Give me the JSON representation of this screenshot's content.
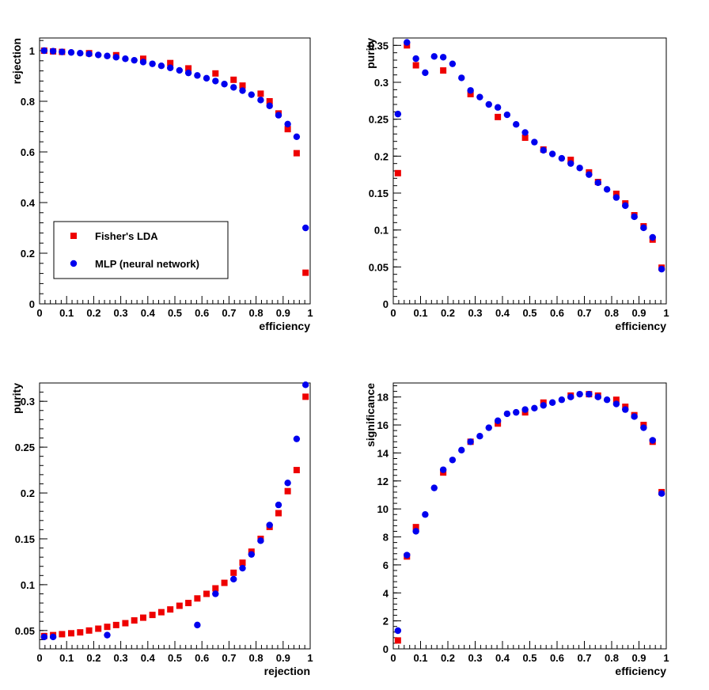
{
  "chart_data": [
    {
      "type": "scatter",
      "xlabel": "efficiency",
      "ylabel": "rejection",
      "xlim": [
        0,
        1
      ],
      "ylim": [
        0,
        1.05
      ],
      "xticks": [
        "0",
        "0.1",
        "0.2",
        "0.3",
        "0.4",
        "0.5",
        "0.6",
        "0.7",
        "0.8",
        "0.9",
        "1"
      ],
      "xtick_values": [
        0,
        0.1,
        0.2,
        0.3,
        0.4,
        0.5,
        0.6,
        0.7,
        0.8,
        0.9,
        1
      ],
      "yticks": [
        "0",
        "0.2",
        "0.4",
        "0.6",
        "0.8",
        "1"
      ],
      "ytick_values": [
        0,
        0.2,
        0.4,
        0.6,
        0.8,
        1
      ],
      "legend": {
        "position": "lower-left"
      },
      "series": [
        {
          "name": "Fisher's LDA",
          "color": "#ee0000",
          "marker": "square",
          "points": [
            [
              0.017,
              1.0
            ],
            [
              0.05,
              0.997
            ],
            [
              0.083,
              0.995
            ],
            [
              0.183,
              0.99
            ],
            [
              0.283,
              0.982
            ],
            [
              0.383,
              0.968
            ],
            [
              0.483,
              0.951
            ],
            [
              0.55,
              0.93
            ],
            [
              0.65,
              0.91
            ],
            [
              0.717,
              0.885
            ],
            [
              0.75,
              0.862
            ],
            [
              0.817,
              0.83
            ],
            [
              0.85,
              0.8
            ],
            [
              0.883,
              0.752
            ],
            [
              0.917,
              0.69
            ],
            [
              0.95,
              0.595
            ],
            [
              0.983,
              0.123
            ]
          ]
        },
        {
          "name": "MLP (neural network)",
          "color": "#0000ee",
          "marker": "circle",
          "points": [
            [
              0.017,
              1.0
            ],
            [
              0.05,
              0.998
            ],
            [
              0.083,
              0.995
            ],
            [
              0.117,
              0.993
            ],
            [
              0.15,
              0.99
            ],
            [
              0.183,
              0.987
            ],
            [
              0.217,
              0.983
            ],
            [
              0.25,
              0.979
            ],
            [
              0.283,
              0.974
            ],
            [
              0.317,
              0.968
            ],
            [
              0.35,
              0.962
            ],
            [
              0.383,
              0.955
            ],
            [
              0.417,
              0.948
            ],
            [
              0.45,
              0.94
            ],
            [
              0.483,
              0.932
            ],
            [
              0.517,
              0.922
            ],
            [
              0.55,
              0.912
            ],
            [
              0.583,
              0.902
            ],
            [
              0.617,
              0.891
            ],
            [
              0.65,
              0.88
            ],
            [
              0.683,
              0.868
            ],
            [
              0.717,
              0.855
            ],
            [
              0.75,
              0.842
            ],
            [
              0.783,
              0.826
            ],
            [
              0.817,
              0.805
            ],
            [
              0.85,
              0.782
            ],
            [
              0.883,
              0.745
            ],
            [
              0.917,
              0.71
            ],
            [
              0.95,
              0.66
            ],
            [
              0.983,
              0.3
            ]
          ]
        }
      ]
    },
    {
      "type": "scatter",
      "xlabel": "efficiency",
      "ylabel": "purity",
      "xlim": [
        0,
        1
      ],
      "ylim": [
        0,
        0.36
      ],
      "xticks": [
        "0",
        "0.1",
        "0.2",
        "0.3",
        "0.4",
        "0.5",
        "0.6",
        "0.7",
        "0.8",
        "0.9",
        "1"
      ],
      "xtick_values": [
        0,
        0.1,
        0.2,
        0.3,
        0.4,
        0.5,
        0.6,
        0.7,
        0.8,
        0.9,
        1
      ],
      "yticks": [
        "0",
        "0.05",
        "0.1",
        "0.15",
        "0.2",
        "0.25",
        "0.3",
        "0.35"
      ],
      "ytick_values": [
        0,
        0.05,
        0.1,
        0.15,
        0.2,
        0.25,
        0.3,
        0.35
      ],
      "series": [
        {
          "name": "Fisher's LDA",
          "color": "#ee0000",
          "marker": "square",
          "points": [
            [
              0.017,
              0.177
            ],
            [
              0.05,
              0.35
            ],
            [
              0.083,
              0.323
            ],
            [
              0.183,
              0.316
            ],
            [
              0.283,
              0.284
            ],
            [
              0.383,
              0.253
            ],
            [
              0.483,
              0.225
            ],
            [
              0.55,
              0.209
            ],
            [
              0.65,
              0.195
            ],
            [
              0.717,
              0.178
            ],
            [
              0.75,
              0.165
            ],
            [
              0.817,
              0.149
            ],
            [
              0.85,
              0.136
            ],
            [
              0.883,
              0.12
            ],
            [
              0.917,
              0.105
            ],
            [
              0.95,
              0.087
            ],
            [
              0.983,
              0.049
            ]
          ]
        },
        {
          "name": "MLP (neural network)",
          "color": "#0000ee",
          "marker": "circle",
          "points": [
            [
              0.017,
              0.257
            ],
            [
              0.05,
              0.354
            ],
            [
              0.083,
              0.332
            ],
            [
              0.117,
              0.313
            ],
            [
              0.15,
              0.335
            ],
            [
              0.183,
              0.334
            ],
            [
              0.217,
              0.325
            ],
            [
              0.25,
              0.306
            ],
            [
              0.283,
              0.289
            ],
            [
              0.317,
              0.28
            ],
            [
              0.35,
              0.27
            ],
            [
              0.383,
              0.266
            ],
            [
              0.417,
              0.256
            ],
            [
              0.45,
              0.243
            ],
            [
              0.483,
              0.232
            ],
            [
              0.517,
              0.219
            ],
            [
              0.55,
              0.208
            ],
            [
              0.583,
              0.203
            ],
            [
              0.617,
              0.197
            ],
            [
              0.65,
              0.19
            ],
            [
              0.683,
              0.184
            ],
            [
              0.717,
              0.175
            ],
            [
              0.75,
              0.164
            ],
            [
              0.783,
              0.155
            ],
            [
              0.817,
              0.144
            ],
            [
              0.85,
              0.133
            ],
            [
              0.883,
              0.118
            ],
            [
              0.917,
              0.103
            ],
            [
              0.95,
              0.09
            ],
            [
              0.983,
              0.047
            ]
          ]
        }
      ]
    },
    {
      "type": "scatter",
      "xlabel": "rejection",
      "ylabel": "purity",
      "xlim": [
        0,
        1
      ],
      "ylim": [
        0.03,
        0.32
      ],
      "xticks": [
        "0",
        "0.1",
        "0.2",
        "0.3",
        "0.4",
        "0.5",
        "0.6",
        "0.7",
        "0.8",
        "0.9",
        "1"
      ],
      "xtick_values": [
        0,
        0.1,
        0.2,
        0.3,
        0.4,
        0.5,
        0.6,
        0.7,
        0.8,
        0.9,
        1
      ],
      "yticks": [
        "0.05",
        "0.1",
        "0.15",
        "0.2",
        "0.25",
        "0.3"
      ],
      "ytick_values": [
        0.05,
        0.1,
        0.15,
        0.2,
        0.25,
        0.3
      ],
      "series": [
        {
          "name": "Fisher's LDA",
          "color": "#ee0000",
          "marker": "square",
          "points": [
            [
              0.017,
              0.044
            ],
            [
              0.05,
              0.045
            ],
            [
              0.083,
              0.046
            ],
            [
              0.117,
              0.047
            ],
            [
              0.15,
              0.048
            ],
            [
              0.183,
              0.05
            ],
            [
              0.217,
              0.052
            ],
            [
              0.25,
              0.054
            ],
            [
              0.283,
              0.056
            ],
            [
              0.317,
              0.058
            ],
            [
              0.35,
              0.061
            ],
            [
              0.383,
              0.064
            ],
            [
              0.417,
              0.067
            ],
            [
              0.45,
              0.07
            ],
            [
              0.483,
              0.073
            ],
            [
              0.517,
              0.077
            ],
            [
              0.55,
              0.08
            ],
            [
              0.583,
              0.085
            ],
            [
              0.617,
              0.09
            ],
            [
              0.65,
              0.096
            ],
            [
              0.683,
              0.102
            ],
            [
              0.717,
              0.113
            ],
            [
              0.75,
              0.124
            ],
            [
              0.783,
              0.136
            ],
            [
              0.817,
              0.15
            ],
            [
              0.85,
              0.163
            ],
            [
              0.883,
              0.178
            ],
            [
              0.917,
              0.202
            ],
            [
              0.95,
              0.225
            ],
            [
              0.983,
              0.305
            ]
          ]
        },
        {
          "name": "MLP (neural network)",
          "color": "#0000ee",
          "marker": "circle",
          "points": [
            [
              0.017,
              0.043
            ],
            [
              0.05,
              0.043
            ],
            [
              0.25,
              0.045
            ],
            [
              0.583,
              0.056
            ],
            [
              0.65,
              0.09
            ],
            [
              0.717,
              0.106
            ],
            [
              0.75,
              0.118
            ],
            [
              0.783,
              0.133
            ],
            [
              0.817,
              0.148
            ],
            [
              0.85,
              0.165
            ],
            [
              0.883,
              0.187
            ],
            [
              0.917,
              0.211
            ],
            [
              0.95,
              0.259
            ],
            [
              0.983,
              0.318
            ]
          ]
        }
      ]
    },
    {
      "type": "scatter",
      "xlabel": "efficiency",
      "ylabel": "significance",
      "xlim": [
        0,
        1
      ],
      "ylim": [
        0,
        19
      ],
      "xticks": [
        "0",
        "0.1",
        "0.2",
        "0.3",
        "0.4",
        "0.5",
        "0.6",
        "0.7",
        "0.8",
        "0.9",
        "1"
      ],
      "xtick_values": [
        0,
        0.1,
        0.2,
        0.3,
        0.4,
        0.5,
        0.6,
        0.7,
        0.8,
        0.9,
        1
      ],
      "yticks": [
        "0",
        "2",
        "4",
        "6",
        "8",
        "10",
        "12",
        "14",
        "16",
        "18"
      ],
      "ytick_values": [
        0,
        2,
        4,
        6,
        8,
        10,
        12,
        14,
        16,
        18
      ],
      "series": [
        {
          "name": "Fisher's LDA",
          "color": "#ee0000",
          "marker": "square",
          "points": [
            [
              0.017,
              0.6
            ],
            [
              0.05,
              6.6
            ],
            [
              0.083,
              8.7
            ],
            [
              0.183,
              12.6
            ],
            [
              0.283,
              14.8
            ],
            [
              0.383,
              16.1
            ],
            [
              0.483,
              16.9
            ],
            [
              0.55,
              17.6
            ],
            [
              0.65,
              18.1
            ],
            [
              0.717,
              18.2
            ],
            [
              0.75,
              18.1
            ],
            [
              0.817,
              17.8
            ],
            [
              0.85,
              17.3
            ],
            [
              0.883,
              16.7
            ],
            [
              0.917,
              16.0
            ],
            [
              0.95,
              14.8
            ],
            [
              0.983,
              11.2
            ]
          ]
        },
        {
          "name": "MLP (neural network)",
          "color": "#0000ee",
          "marker": "circle",
          "points": [
            [
              0.017,
              1.3
            ],
            [
              0.05,
              6.7
            ],
            [
              0.083,
              8.4
            ],
            [
              0.117,
              9.6
            ],
            [
              0.15,
              11.5
            ],
            [
              0.183,
              12.8
            ],
            [
              0.217,
              13.5
            ],
            [
              0.25,
              14.2
            ],
            [
              0.283,
              14.8
            ],
            [
              0.317,
              15.2
            ],
            [
              0.35,
              15.8
            ],
            [
              0.383,
              16.3
            ],
            [
              0.417,
              16.8
            ],
            [
              0.45,
              16.9
            ],
            [
              0.483,
              17.1
            ],
            [
              0.517,
              17.2
            ],
            [
              0.55,
              17.4
            ],
            [
              0.583,
              17.6
            ],
            [
              0.617,
              17.8
            ],
            [
              0.65,
              18.0
            ],
            [
              0.683,
              18.2
            ],
            [
              0.717,
              18.2
            ],
            [
              0.75,
              18.0
            ],
            [
              0.783,
              17.8
            ],
            [
              0.817,
              17.5
            ],
            [
              0.85,
              17.1
            ],
            [
              0.883,
              16.6
            ],
            [
              0.917,
              15.8
            ],
            [
              0.95,
              14.9
            ],
            [
              0.983,
              11.1
            ]
          ]
        }
      ]
    }
  ]
}
